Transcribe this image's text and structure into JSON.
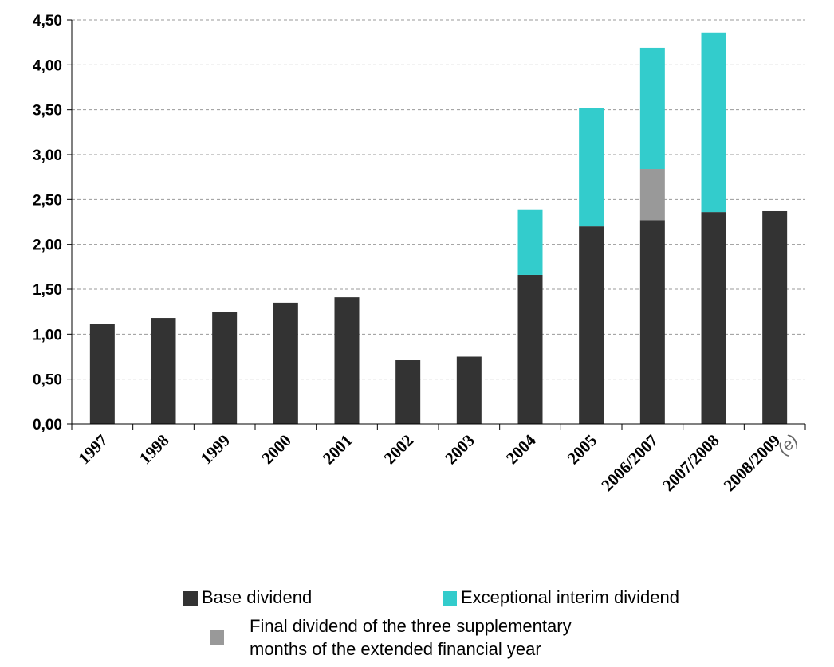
{
  "chart_data": {
    "type": "bar",
    "stacked": true,
    "categories": [
      "1997",
      "1998",
      "1999",
      "2000",
      "2001",
      "2002",
      "2003",
      "2004",
      "2005",
      "2006/2007",
      "2007/2008",
      "2008/2009"
    ],
    "estimate_note": "(e)",
    "series": [
      {
        "name": "Base dividend",
        "color": "#333333",
        "values": [
          1.11,
          1.18,
          1.25,
          1.35,
          1.41,
          0.71,
          0.75,
          1.66,
          2.2,
          2.27,
          2.36,
          2.37
        ]
      },
      {
        "name": "Final dividend of the three supplementary months of the extended financial year",
        "color": "#999999",
        "values": [
          0,
          0,
          0,
          0,
          0,
          0,
          0,
          0,
          0,
          0.57,
          0,
          0
        ]
      },
      {
        "name": "Exceptional interim dividend",
        "color": "#33CCCC",
        "values": [
          0,
          0,
          0,
          0,
          0,
          0,
          0,
          0.73,
          1.32,
          1.35,
          2.0,
          0
        ]
      }
    ],
    "yticks": [
      "0,00",
      "0,50",
      "1,00",
      "1,50",
      "2,00",
      "2,50",
      "3,00",
      "3,50",
      "4,00",
      "4,50"
    ],
    "ylim": [
      0,
      4.5
    ],
    "grid": true,
    "legend_position": "bottom"
  },
  "legend": {
    "base": {
      "label": "Base dividend",
      "color": "#333333"
    },
    "exceptional": {
      "label": "Exceptional interim dividend",
      "color": "#33CCCC"
    },
    "final_line1": "Final dividend of the three supplementary",
    "final_line2": "months of the extended financial year",
    "final_color": "#999999"
  }
}
